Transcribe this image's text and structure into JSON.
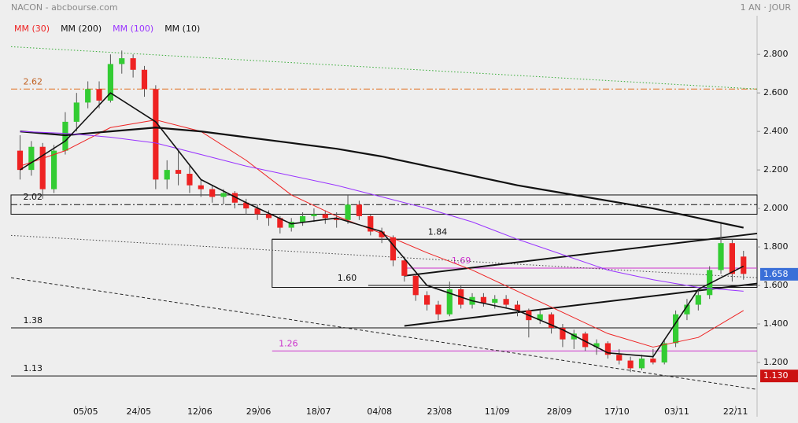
{
  "chart_data": {
    "type": "candlestick",
    "title": "NACON - abcbourse.com",
    "subtitle": "1 AN · JOUR",
    "xlim": [
      -0.8,
      65.2
    ],
    "ylim": [
      1.0,
      2.96
    ],
    "xticks": [
      {
        "value": 5.8,
        "label": "05/05"
      },
      {
        "value": 10.5,
        "label": "24/05"
      },
      {
        "value": 15.9,
        "label": "12/06"
      },
      {
        "value": 21.1,
        "label": "29/06"
      },
      {
        "value": 26.4,
        "label": "18/07"
      },
      {
        "value": 31.8,
        "label": "04/08"
      },
      {
        "value": 37.1,
        "label": "23/08"
      },
      {
        "value": 42.2,
        "label": "11/09"
      },
      {
        "value": 47.7,
        "label": "28/09"
      },
      {
        "value": 52.8,
        "label": "17/10"
      },
      {
        "value": 58.1,
        "label": "03/11"
      },
      {
        "value": 63.3,
        "label": "22/11"
      }
    ],
    "yticks": [
      {
        "value": 1.2,
        "label": "1.200"
      },
      {
        "value": 1.4,
        "label": "1.400"
      },
      {
        "value": 1.6,
        "label": "1.600"
      },
      {
        "value": 1.8,
        "label": "1.800"
      },
      {
        "value": 2.0,
        "label": "2.000"
      },
      {
        "value": 2.2,
        "label": "2.200"
      },
      {
        "value": 2.4,
        "label": "2.400"
      },
      {
        "value": 2.6,
        "label": "2.600"
      },
      {
        "value": 2.8,
        "label": "2.800"
      }
    ],
    "up_color": "#33cc33",
    "down_color": "#ee2222",
    "x": [
      0,
      1,
      2,
      3,
      4,
      5,
      6,
      7,
      8,
      9,
      10,
      11,
      12,
      13,
      14,
      15,
      16,
      17,
      18,
      19,
      20,
      21,
      22,
      23,
      24,
      25,
      26,
      27,
      28,
      29,
      30,
      31,
      32,
      33,
      34,
      35,
      36,
      37,
      38,
      39,
      40,
      41,
      42,
      43,
      44,
      45,
      46,
      47,
      48,
      49,
      50,
      51,
      52,
      53,
      54,
      55,
      56,
      57,
      58,
      59,
      60,
      61,
      62,
      63,
      64
    ],
    "candles": [
      [
        2.3,
        2.38,
        2.15,
        2.2
      ],
      [
        2.2,
        2.35,
        2.17,
        2.32
      ],
      [
        2.32,
        2.34,
        2.05,
        2.1
      ],
      [
        2.1,
        2.33,
        2.08,
        2.3
      ],
      [
        2.3,
        2.5,
        2.28,
        2.45
      ],
      [
        2.45,
        2.6,
        2.4,
        2.55
      ],
      [
        2.55,
        2.66,
        2.52,
        2.62
      ],
      [
        2.62,
        2.66,
        2.52,
        2.56
      ],
      [
        2.56,
        2.8,
        2.55,
        2.75
      ],
      [
        2.75,
        2.82,
        2.7,
        2.78
      ],
      [
        2.78,
        2.8,
        2.68,
        2.72
      ],
      [
        2.72,
        2.74,
        2.58,
        2.62
      ],
      [
        2.62,
        2.64,
        2.1,
        2.15
      ],
      [
        2.15,
        2.25,
        2.1,
        2.2
      ],
      [
        2.2,
        2.3,
        2.12,
        2.18
      ],
      [
        2.18,
        2.22,
        2.08,
        2.12
      ],
      [
        2.12,
        2.15,
        2.06,
        2.1
      ],
      [
        2.1,
        2.12,
        2.03,
        2.06
      ],
      [
        2.06,
        2.1,
        2.02,
        2.08
      ],
      [
        2.08,
        2.09,
        2.0,
        2.03
      ],
      [
        2.03,
        2.05,
        1.97,
        2.0
      ],
      [
        2.0,
        2.02,
        1.94,
        1.97
      ],
      [
        1.97,
        1.99,
        1.91,
        1.95
      ],
      [
        1.95,
        1.96,
        1.87,
        1.9
      ],
      [
        1.9,
        1.95,
        1.88,
        1.93
      ],
      [
        1.93,
        1.98,
        1.91,
        1.96
      ],
      [
        1.96,
        2.0,
        1.93,
        1.97
      ],
      [
        1.97,
        1.99,
        1.92,
        1.95
      ],
      [
        1.95,
        1.98,
        1.9,
        1.94
      ],
      [
        1.94,
        2.07,
        1.92,
        2.02
      ],
      [
        2.02,
        2.04,
        1.94,
        1.96
      ],
      [
        1.96,
        1.97,
        1.86,
        1.88
      ],
      [
        1.88,
        1.9,
        1.82,
        1.85
      ],
      [
        1.85,
        1.86,
        1.7,
        1.73
      ],
      [
        1.73,
        1.75,
        1.62,
        1.65
      ],
      [
        1.65,
        1.66,
        1.52,
        1.55
      ],
      [
        1.55,
        1.57,
        1.47,
        1.5
      ],
      [
        1.5,
        1.52,
        1.42,
        1.45
      ],
      [
        1.45,
        1.62,
        1.44,
        1.58
      ],
      [
        1.58,
        1.6,
        1.48,
        1.5
      ],
      [
        1.5,
        1.56,
        1.48,
        1.54
      ],
      [
        1.54,
        1.56,
        1.49,
        1.51
      ],
      [
        1.51,
        1.55,
        1.48,
        1.53
      ],
      [
        1.53,
        1.55,
        1.48,
        1.5
      ],
      [
        1.5,
        1.52,
        1.44,
        1.47
      ],
      [
        1.47,
        1.48,
        1.33,
        1.42
      ],
      [
        1.42,
        1.47,
        1.4,
        1.45
      ],
      [
        1.45,
        1.46,
        1.35,
        1.38
      ],
      [
        1.38,
        1.4,
        1.28,
        1.32
      ],
      [
        1.32,
        1.37,
        1.27,
        1.35
      ],
      [
        1.35,
        1.36,
        1.26,
        1.28
      ],
      [
        1.28,
        1.32,
        1.24,
        1.3
      ],
      [
        1.3,
        1.31,
        1.22,
        1.24
      ],
      [
        1.24,
        1.27,
        1.19,
        1.21
      ],
      [
        1.21,
        1.23,
        1.15,
        1.17
      ],
      [
        1.17,
        1.24,
        1.16,
        1.22
      ],
      [
        1.22,
        1.27,
        1.19,
        1.2
      ],
      [
        1.2,
        1.32,
        1.19,
        1.3
      ],
      [
        1.3,
        1.47,
        1.28,
        1.45
      ],
      [
        1.45,
        1.53,
        1.42,
        1.5
      ],
      [
        1.5,
        1.58,
        1.47,
        1.55
      ],
      [
        1.55,
        1.7,
        1.53,
        1.68
      ],
      [
        1.68,
        1.93,
        1.66,
        1.82
      ],
      [
        1.82,
        1.84,
        1.62,
        1.66
      ],
      [
        1.75,
        1.78,
        1.63,
        1.66
      ]
    ],
    "series": [
      {
        "name": "MM (30)",
        "color": "#ee2222",
        "width": 1,
        "x": [
          0,
          4,
          8,
          12,
          16,
          20,
          24,
          28,
          32,
          36,
          40,
          44,
          48,
          52,
          56,
          60,
          64
        ],
        "values": [
          2.22,
          2.3,
          2.42,
          2.46,
          2.4,
          2.25,
          2.07,
          1.96,
          1.87,
          1.77,
          1.68,
          1.57,
          1.46,
          1.35,
          1.28,
          1.33,
          1.47
        ]
      },
      {
        "name": "MM (200)",
        "color": "#111111",
        "width": 2.2,
        "x": [
          0,
          4,
          8,
          12,
          16,
          20,
          24,
          28,
          32,
          36,
          40,
          44,
          48,
          52,
          56,
          60,
          64
        ],
        "values": [
          2.4,
          2.38,
          2.4,
          2.42,
          2.4,
          2.37,
          2.34,
          2.31,
          2.27,
          2.22,
          2.17,
          2.12,
          2.08,
          2.04,
          2.0,
          1.95,
          1.9
        ]
      },
      {
        "name": "MM (100)",
        "color": "#9933ff",
        "width": 1,
        "x": [
          0,
          4,
          8,
          12,
          16,
          20,
          24,
          28,
          32,
          36,
          40,
          44,
          48,
          52,
          56,
          60,
          64
        ],
        "values": [
          2.4,
          2.39,
          2.37,
          2.34,
          2.28,
          2.22,
          2.17,
          2.12,
          2.06,
          2.0,
          1.93,
          1.84,
          1.76,
          1.68,
          1.63,
          1.59,
          1.57
        ]
      },
      {
        "name": "MM (10)",
        "color": "#111111",
        "width": 1.6,
        "x": [
          0,
          4,
          8,
          12,
          16,
          20,
          24,
          28,
          32,
          36,
          40,
          44,
          48,
          52,
          56,
          60,
          64
        ],
        "values": [
          2.2,
          2.35,
          2.6,
          2.45,
          2.15,
          2.03,
          1.92,
          1.95,
          1.88,
          1.6,
          1.52,
          1.47,
          1.37,
          1.25,
          1.23,
          1.58,
          1.7
        ]
      }
    ],
    "zones": [
      {
        "x0": -0.8,
        "values": [
          1.97,
          2.07
        ]
      },
      {
        "x0": 22.3,
        "values": [
          1.59,
          1.84
        ]
      }
    ],
    "levels": [
      {
        "value": 2.62,
        "label": "2.62",
        "color": "#e07020",
        "style": "dashdot",
        "x0": -0.8,
        "label_x": 0
      },
      {
        "value": 2.02,
        "label": "2.02",
        "color": "#111111",
        "style": "dashdot",
        "x0": -0.8,
        "label_x": 0
      },
      {
        "value": 1.84,
        "label": "1.84",
        "color": "#111111",
        "style": "solid",
        "x0": 22.3,
        "label_x": 35.8
      },
      {
        "value": 1.69,
        "label": "1.69",
        "color": "#cc33cc",
        "style": "solid",
        "x0": 34,
        "label_x": 37.9
      },
      {
        "value": 1.6,
        "label": "1.60",
        "color": "#111111",
        "style": "solid",
        "x0": 30.8,
        "label_x": 27.8
      },
      {
        "value": 1.38,
        "label": "1.38",
        "color": "#111111",
        "style": "solid",
        "x0": -0.8,
        "label_x": 0
      },
      {
        "value": 1.26,
        "label": "1.26",
        "color": "#cc33cc",
        "style": "solid",
        "x0": 22.3,
        "label_x": 22.6
      },
      {
        "value": 1.13,
        "label": "1.13",
        "color": "#111111",
        "style": "solid",
        "x0": -0.8,
        "label_x": 0
      }
    ],
    "trendlines": [
      {
        "x": [
          -0.8,
          65.2
        ],
        "values": [
          2.84,
          2.62
        ],
        "color": "#33aa33",
        "style": "dotted",
        "width": 1
      },
      {
        "x": [
          -0.8,
          65.2
        ],
        "values": [
          1.86,
          1.64
        ],
        "color": "#444444",
        "style": "dotted",
        "width": 1
      },
      {
        "x": [
          -0.8,
          65.2
        ],
        "values": [
          1.64,
          1.06
        ],
        "color": "#222222",
        "style": "dashed",
        "width": 1
      },
      {
        "x": [
          34,
          65.2
        ],
        "values": [
          1.65,
          1.87
        ],
        "color": "#111111",
        "style": "solid",
        "width": 2
      },
      {
        "x": [
          34,
          65.2
        ],
        "values": [
          1.39,
          1.61
        ],
        "color": "#111111",
        "style": "solid",
        "width": 2
      }
    ],
    "price_tags": [
      {
        "value": 1.658,
        "label": "1.658",
        "color": "#3a6fd8"
      },
      {
        "value": 1.13,
        "label": "1.130",
        "color": "#cc1111"
      }
    ]
  }
}
